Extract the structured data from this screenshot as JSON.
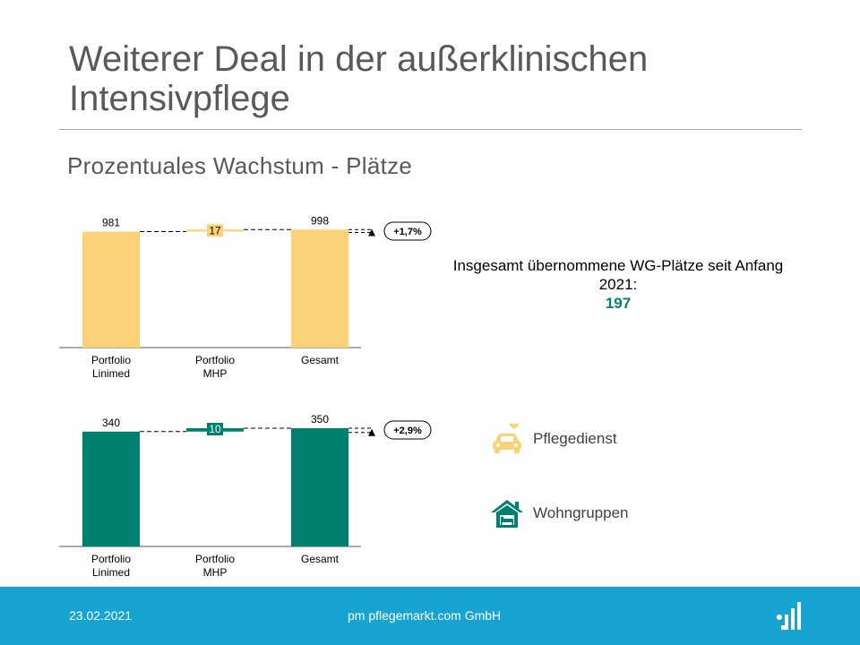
{
  "slide": {
    "title": "Weiterer Deal in der außerklinischen Intensivpflege",
    "subtitle": "Prozentuales Wachstum - Plätze"
  },
  "summary": {
    "text": "Insgesamt übernommene WG-Plätze seit Anfang 2021:",
    "value": "197"
  },
  "legend": [
    {
      "label": "Pflegedienst",
      "icon": "car-heart-icon",
      "color": "#fcd278"
    },
    {
      "label": "Wohngruppen",
      "icon": "house-bed-icon",
      "color": "#00806f"
    }
  ],
  "footer": {
    "date": "23.02.2021",
    "company": "pm pflegemarkt.com GmbH",
    "logo": "pflegemarkt-logo-icon",
    "color": "#17a4d0"
  },
  "colors": {
    "accent_teal": "#00806f",
    "accent_yellow": "#fcd278"
  },
  "chart_data": [
    {
      "type": "bar",
      "subtype": "waterfall",
      "categories": [
        "Portfolio\nLinimed",
        "Portfolio\nMHP",
        "Gesamt"
      ],
      "values": [
        981,
        17,
        998
      ],
      "value_labels": [
        "981",
        "17",
        "998"
      ],
      "growth_label": "+1,7%",
      "color": "#fcd278",
      "ylim": [
        0,
        1000
      ]
    },
    {
      "type": "bar",
      "subtype": "waterfall",
      "categories": [
        "Portfolio\nLinimed",
        "Portfolio\nMHP",
        "Gesamt"
      ],
      "values": [
        340,
        10,
        350
      ],
      "value_labels": [
        "340",
        "10",
        "350"
      ],
      "growth_label": "+2,9%",
      "color": "#00806f",
      "ylim": [
        0,
        350
      ]
    }
  ]
}
